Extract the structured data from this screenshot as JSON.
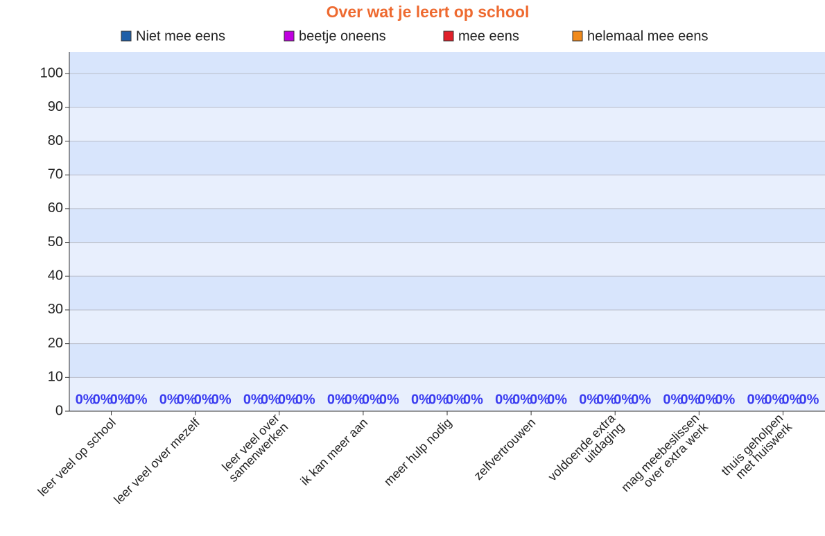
{
  "chart_data": {
    "type": "bar",
    "title": "Over wat je leert op school",
    "categories": [
      [
        "leer veel op school"
      ],
      [
        "leer veel over mezelf"
      ],
      [
        "leer veel over",
        "samenwerken"
      ],
      [
        "ik kan meer aan"
      ],
      [
        "meer hulp nodig"
      ],
      [
        "zelfvertrouwen"
      ],
      [
        "voldoende extra",
        "uitdaging"
      ],
      [
        "mag meebeslissen",
        "over extra werk"
      ],
      [
        "thuis geholpen",
        "met huiswerk"
      ]
    ],
    "series": [
      {
        "name": "Niet mee eens",
        "color": "#1f5fa8",
        "values": [
          0,
          0,
          0,
          0,
          0,
          0,
          0,
          0,
          0
        ],
        "value_labels": [
          "0%",
          "0%",
          "0%",
          "0%",
          "0%",
          "0%",
          "0%",
          "0%",
          "0%"
        ]
      },
      {
        "name": "beetje oneens",
        "color": "#c000e0",
        "values": [
          0,
          0,
          0,
          0,
          0,
          0,
          0,
          0,
          0
        ],
        "value_labels": [
          "0%",
          "0%",
          "0%",
          "0%",
          "0%",
          "0%",
          "0%",
          "0%",
          "0%"
        ]
      },
      {
        "name": "mee eens",
        "color": "#e0202a",
        "values": [
          0,
          0,
          0,
          0,
          0,
          0,
          0,
          0,
          0
        ],
        "value_labels": [
          "0%",
          "0%",
          "0%",
          "0%",
          "0%",
          "0%",
          "0%",
          "0%",
          "0%"
        ]
      },
      {
        "name": "helemaal mee eens",
        "color": "#f08a1c",
        "values": [
          0,
          0,
          0,
          0,
          0,
          0,
          0,
          0,
          0
        ],
        "value_labels": [
          "0%",
          "0%",
          "0%",
          "0%",
          "0%",
          "0%",
          "0%",
          "0%",
          "0%"
        ]
      }
    ],
    "ylim": [
      0,
      106.4
    ],
    "yticks": [
      0,
      10,
      20,
      30,
      40,
      50,
      60,
      70,
      80,
      90,
      100
    ],
    "grid": true,
    "legend": "top"
  }
}
